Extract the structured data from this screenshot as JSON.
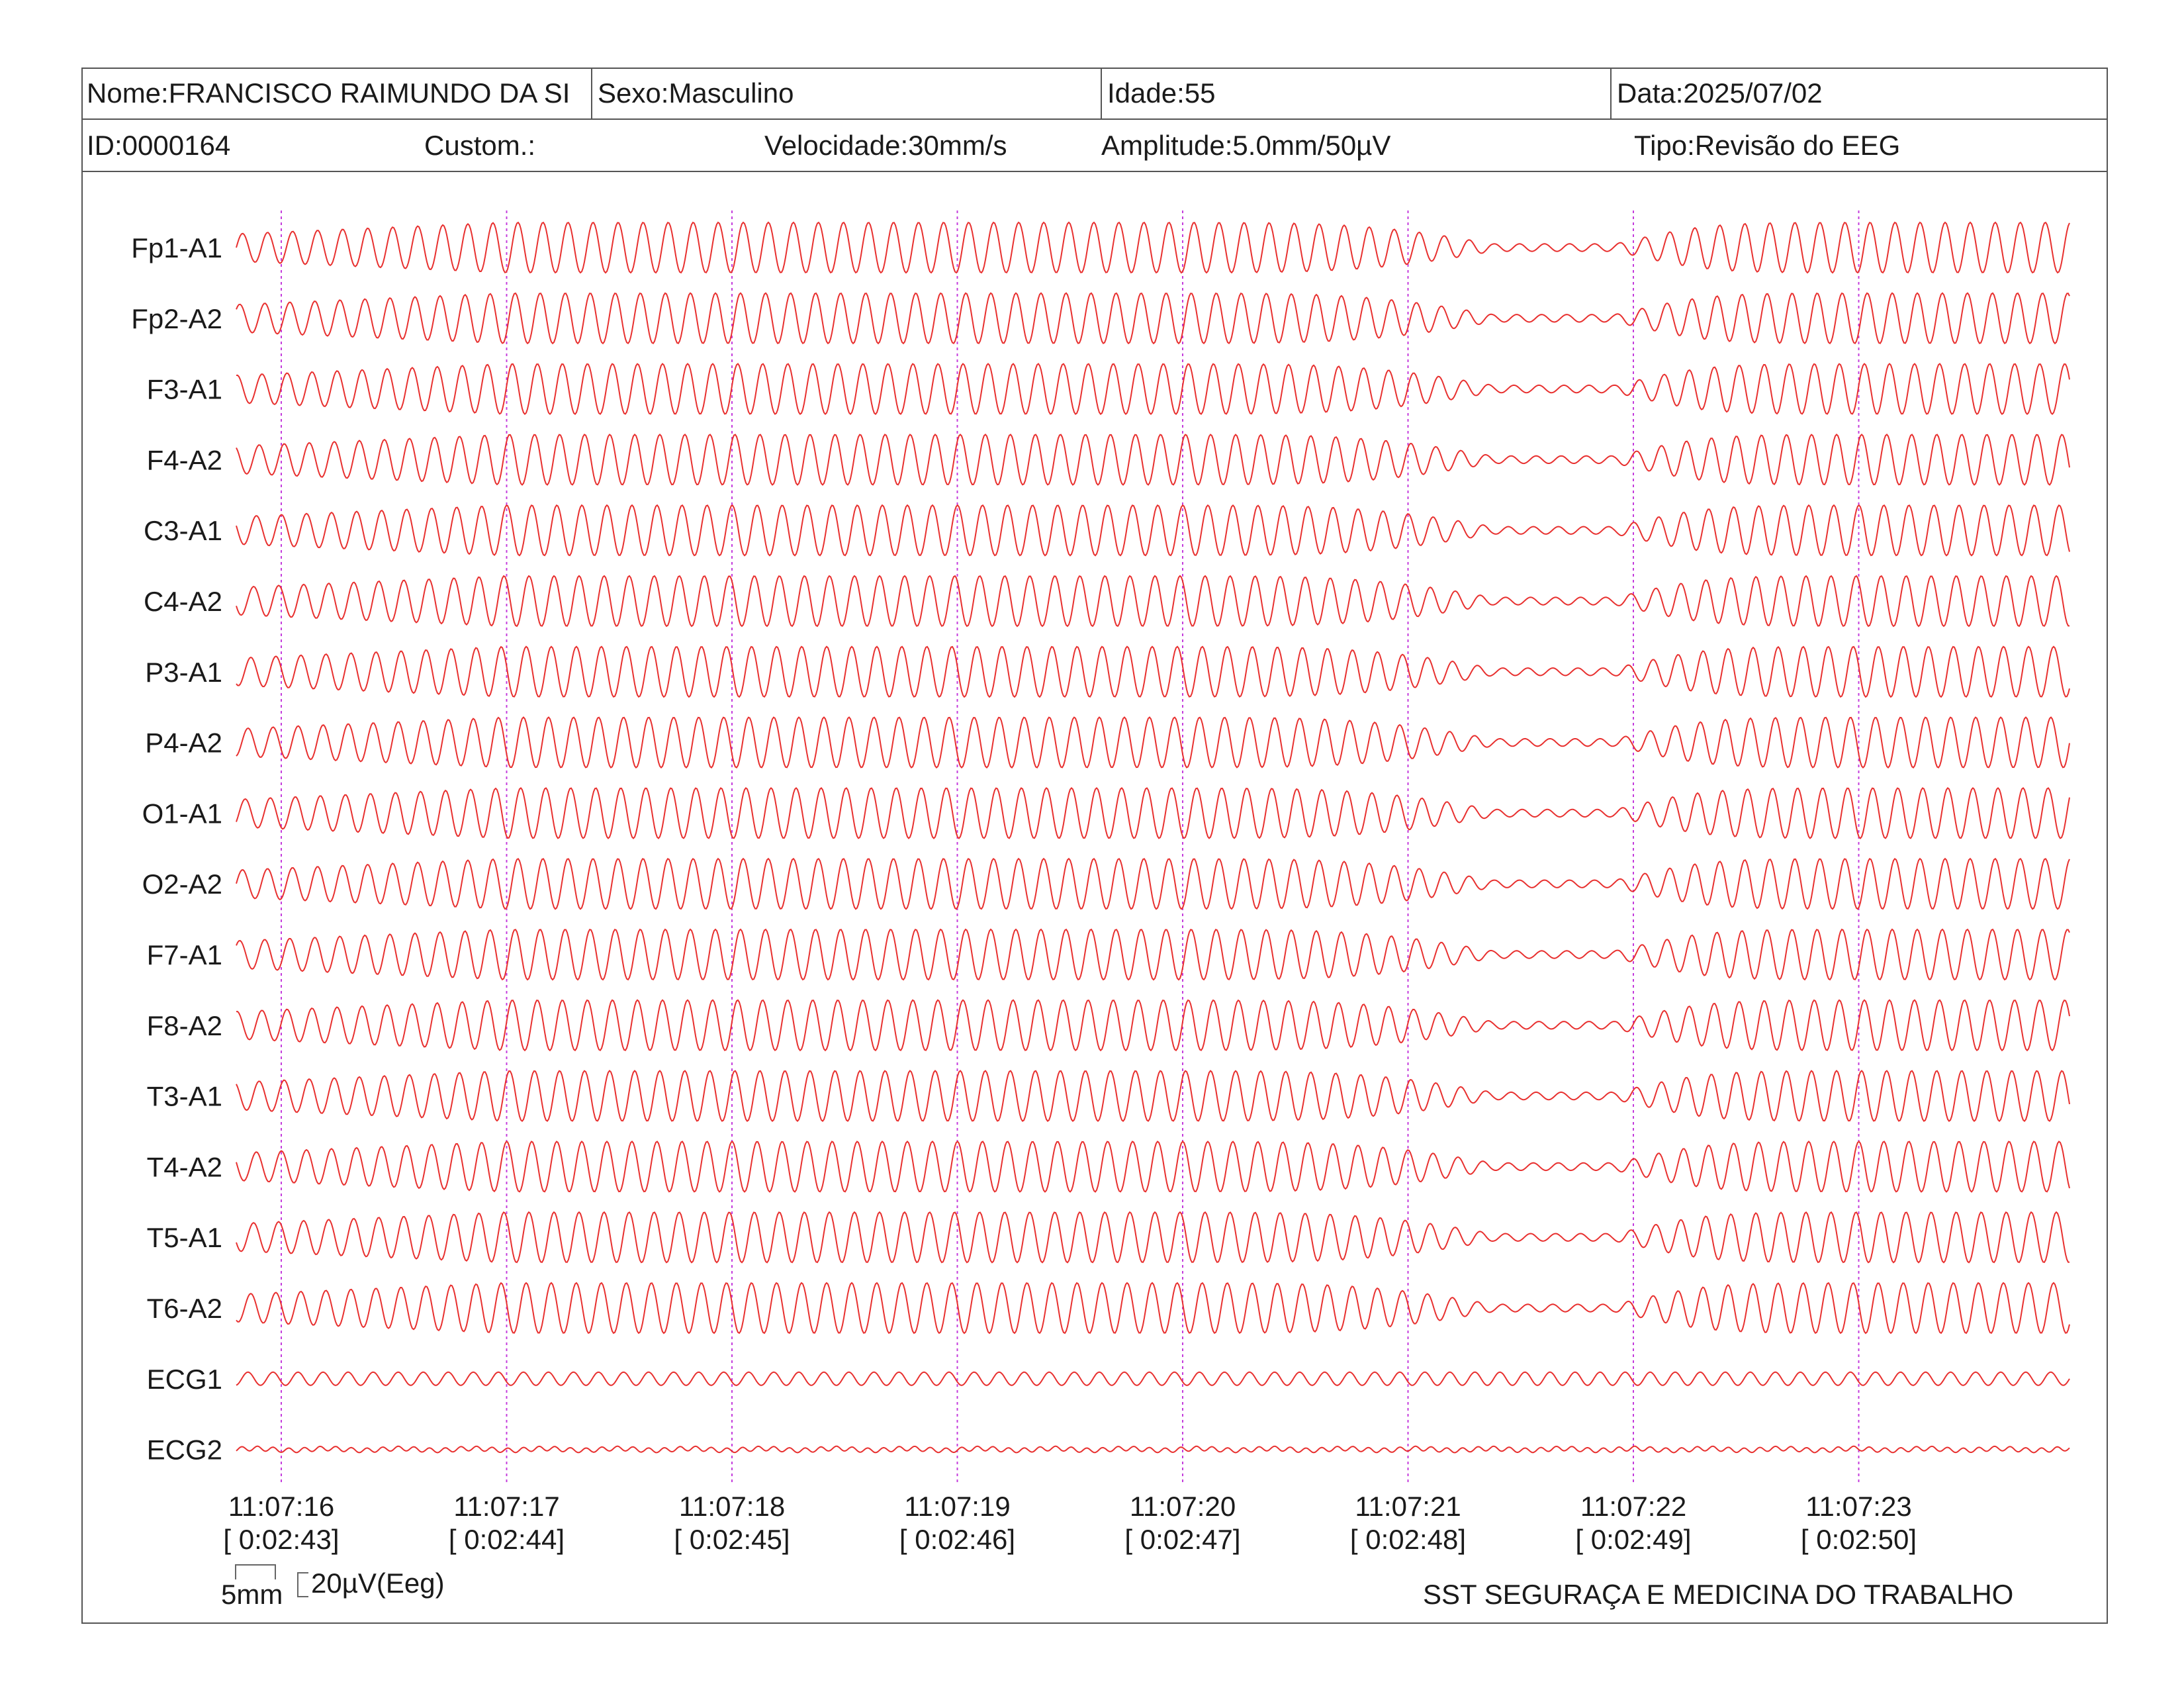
{
  "header": {
    "name": "Nome:FRANCISCO RAIMUNDO DA SI",
    "sex": "Sexo:Masculino",
    "age": "Idade:55",
    "date": "Data:2025/07/02",
    "id": "ID:0000164",
    "custom": "Custom.:",
    "speed": "Velocidade:30mm/s",
    "amplitude": "Amplitude:5.0mm/50µV",
    "type": "Tipo:Revisão do EEG"
  },
  "footer": {
    "scale_time": "5mm",
    "scale_amp": "20µV(Eeg)",
    "company": "SST SEGURAÇA E MEDICINA DO TRABALHO"
  },
  "colors": {
    "trace": "#e8302f",
    "second_marker": "#c43cdc",
    "border": "#555555"
  },
  "chart_data": {
    "type": "line",
    "description_of_traces": "multichannel EEG waveform traces (~9 Hz rhythmic activity), amplitude reduced around 11:07:21–11:07:22",
    "channels": [
      "Fp1-A1",
      "Fp2-A2",
      "F3-A1",
      "F4-A2",
      "C3-A1",
      "C4-A2",
      "P3-A1",
      "P4-A2",
      "O1-A1",
      "O2-A2",
      "F7-A1",
      "F8-A2",
      "T3-A1",
      "T4-A2",
      "T5-A1",
      "T6-A2",
      "ECG1",
      "ECG2"
    ],
    "time_labels": [
      "11:07:16",
      "11:07:17",
      "11:07:18",
      "11:07:19",
      "11:07:20",
      "11:07:21",
      "11:07:22",
      "11:07:23"
    ],
    "elapsed_labels": [
      "[ 0:02:43]",
      "[ 0:02:44]",
      "[ 0:02:45]",
      "[ 0:02:46]",
      "[ 0:02:47]",
      "[ 0:02:48]",
      "[ 0:02:49]",
      "[ 0:02:50]"
    ],
    "speed_mm_per_s": 30,
    "amplitude_mm_per_50uV": 5.0
  }
}
